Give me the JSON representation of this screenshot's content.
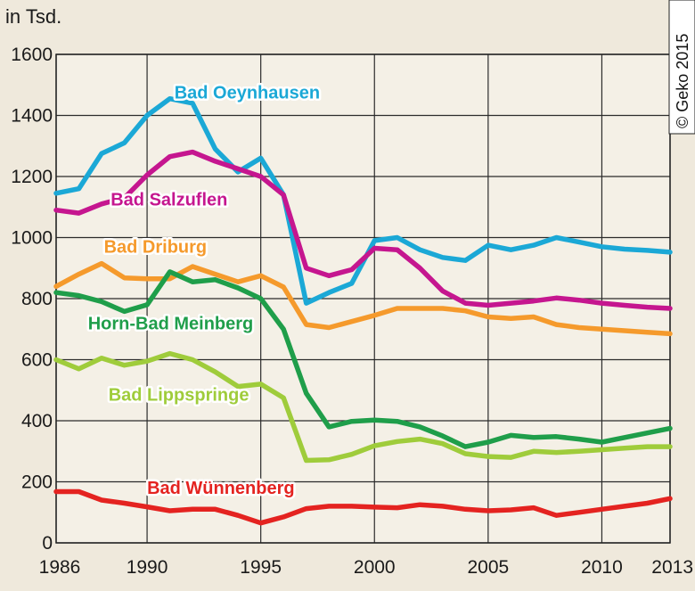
{
  "chart_data": {
    "type": "line",
    "unit_label": "in Tsd.",
    "credit": "© Geko 2015",
    "xlim": [
      1986,
      2013
    ],
    "ylim": [
      0,
      1600
    ],
    "x_ticks": [
      "1986",
      "1990",
      "1995",
      "2000",
      "2005",
      "2010",
      "2013"
    ],
    "x_tick_values": [
      1986,
      1990,
      1995,
      2000,
      2005,
      2010,
      2013
    ],
    "y_ticks": [
      "0",
      "200",
      "400",
      "600",
      "800",
      "1000",
      "1200",
      "1400",
      "1600"
    ],
    "y_tick_values": [
      0,
      200,
      400,
      600,
      800,
      1000,
      1200,
      1400,
      1600
    ],
    "x": [
      1986,
      1987,
      1988,
      1989,
      1990,
      1991,
      1992,
      1993,
      1994,
      1995,
      1996,
      1997,
      1998,
      1999,
      2000,
      2001,
      2002,
      2003,
      2004,
      2005,
      2006,
      2007,
      2008,
      2009,
      2010,
      2011,
      2012,
      2013
    ],
    "series": [
      {
        "name": "Bad Oeynhausen",
        "color": "#1ba8d6",
        "values": [
          1145,
          1160,
          1275,
          1310,
          1400,
          1455,
          1440,
          1290,
          1215,
          1260,
          1140,
          785,
          820,
          850,
          990,
          1000,
          960,
          935,
          925,
          975,
          960,
          975,
          1000,
          985,
          970,
          962,
          958,
          952
        ]
      },
      {
        "name": "Bad Salzuflen",
        "color": "#c5168f",
        "values": [
          1090,
          1080,
          1110,
          1130,
          1205,
          1265,
          1280,
          1250,
          1225,
          1200,
          1140,
          900,
          875,
          895,
          965,
          960,
          900,
          825,
          785,
          778,
          785,
          792,
          802,
          795,
          785,
          778,
          772,
          768
        ]
      },
      {
        "name": "Bad Driburg",
        "color": "#f59a2c",
        "values": [
          840,
          880,
          915,
          868,
          865,
          865,
          905,
          880,
          855,
          875,
          838,
          715,
          705,
          725,
          745,
          768,
          768,
          768,
          760,
          740,
          735,
          740,
          715,
          705,
          700,
          695,
          690,
          685
        ]
      },
      {
        "name": "Horn-Bad Meinberg",
        "color": "#1f9e4a",
        "values": [
          820,
          810,
          790,
          758,
          780,
          888,
          855,
          862,
          835,
          800,
          700,
          490,
          380,
          398,
          402,
          398,
          380,
          350,
          315,
          330,
          352,
          345,
          348,
          340,
          330,
          345,
          360,
          375
        ]
      },
      {
        "name": "Bad Lippspringe",
        "color": "#9fcc3b",
        "values": [
          600,
          570,
          605,
          582,
          595,
          620,
          600,
          560,
          512,
          520,
          475,
          270,
          272,
          290,
          318,
          332,
          340,
          325,
          292,
          283,
          280,
          300,
          296,
          300,
          305,
          310,
          315,
          315
        ]
      },
      {
        "name": "Bad Wünnenberg",
        "color": "#e42320",
        "values": [
          168,
          168,
          140,
          130,
          118,
          105,
          110,
          110,
          90,
          65,
          85,
          112,
          120,
          120,
          117,
          115,
          125,
          120,
          110,
          105,
          108,
          115,
          90,
          100,
          110,
          120,
          130,
          145
        ]
      }
    ],
    "label_anchors": [
      {
        "series": "Bad Oeynhausen",
        "x": 1991.2,
        "y": 1455
      },
      {
        "series": "Bad Salzuflen",
        "x": 1988.4,
        "y": 1105
      },
      {
        "series": "Bad Driburg",
        "x": 1988.1,
        "y": 950
      },
      {
        "series": "Horn-Bad Meinberg",
        "x": 1987.4,
        "y": 700
      },
      {
        "series": "Bad Lippspringe",
        "x": 1988.3,
        "y": 465
      },
      {
        "series": "Bad Wünnenberg",
        "x": 1990.0,
        "y": 160
      }
    ]
  }
}
